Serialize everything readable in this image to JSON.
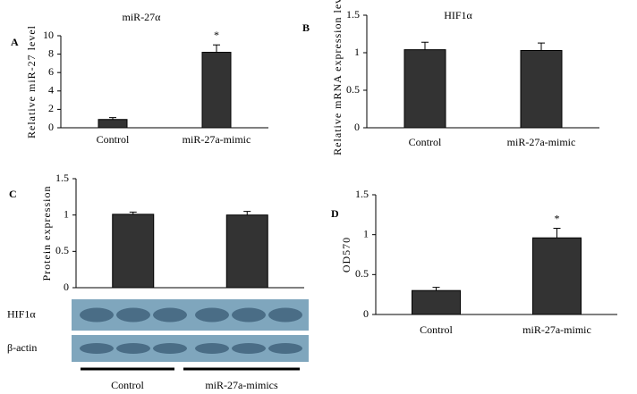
{
  "chart_data": [
    {
      "type": "bar",
      "panel": "A",
      "title": "miR-27α",
      "y_label": "Relative miR-27 level",
      "categories": [
        "Control",
        "miR-27a-mimic"
      ],
      "values": [
        0.9,
        8.2
      ],
      "errors": [
        0.2,
        0.8
      ],
      "significance": [
        null,
        "*"
      ],
      "color": "#333333",
      "ylim": [
        0,
        10
      ],
      "yticks": [
        0,
        2,
        4,
        6,
        8,
        10
      ]
    },
    {
      "type": "bar",
      "panel": "B",
      "title": "HIF1α",
      "y_label": "Relative mRNA expression level",
      "categories": [
        "Control",
        "miR-27a-mimic"
      ],
      "values": [
        1.04,
        1.03
      ],
      "errors": [
        0.1,
        0.1
      ],
      "color": "#333333",
      "ylim": [
        0,
        1.5
      ],
      "yticks": [
        0,
        0.5,
        1,
        1.5
      ]
    },
    {
      "type": "bar",
      "panel": "C",
      "y_label": "Protein expression",
      "categories": [
        "Control",
        "miR-27a-mimics"
      ],
      "values": [
        1.01,
        1.0
      ],
      "errors": [
        0.03,
        0.05
      ],
      "color": "#333333",
      "ylim": [
        0,
        1.5
      ],
      "yticks": [
        0,
        0.5,
        1,
        1.5
      ],
      "blot_rows": [
        "HIF1α",
        "β-actin"
      ]
    },
    {
      "type": "bar",
      "panel": "D",
      "y_label": "OD570",
      "categories": [
        "Control",
        "miR-27a-mimic"
      ],
      "values": [
        0.3,
        0.96
      ],
      "errors": [
        0.04,
        0.12
      ],
      "significance": [
        null,
        "*"
      ],
      "color": "#333333",
      "ylim": [
        0,
        1.5
      ],
      "yticks": [
        0,
        0.5,
        1,
        1.5
      ]
    }
  ]
}
